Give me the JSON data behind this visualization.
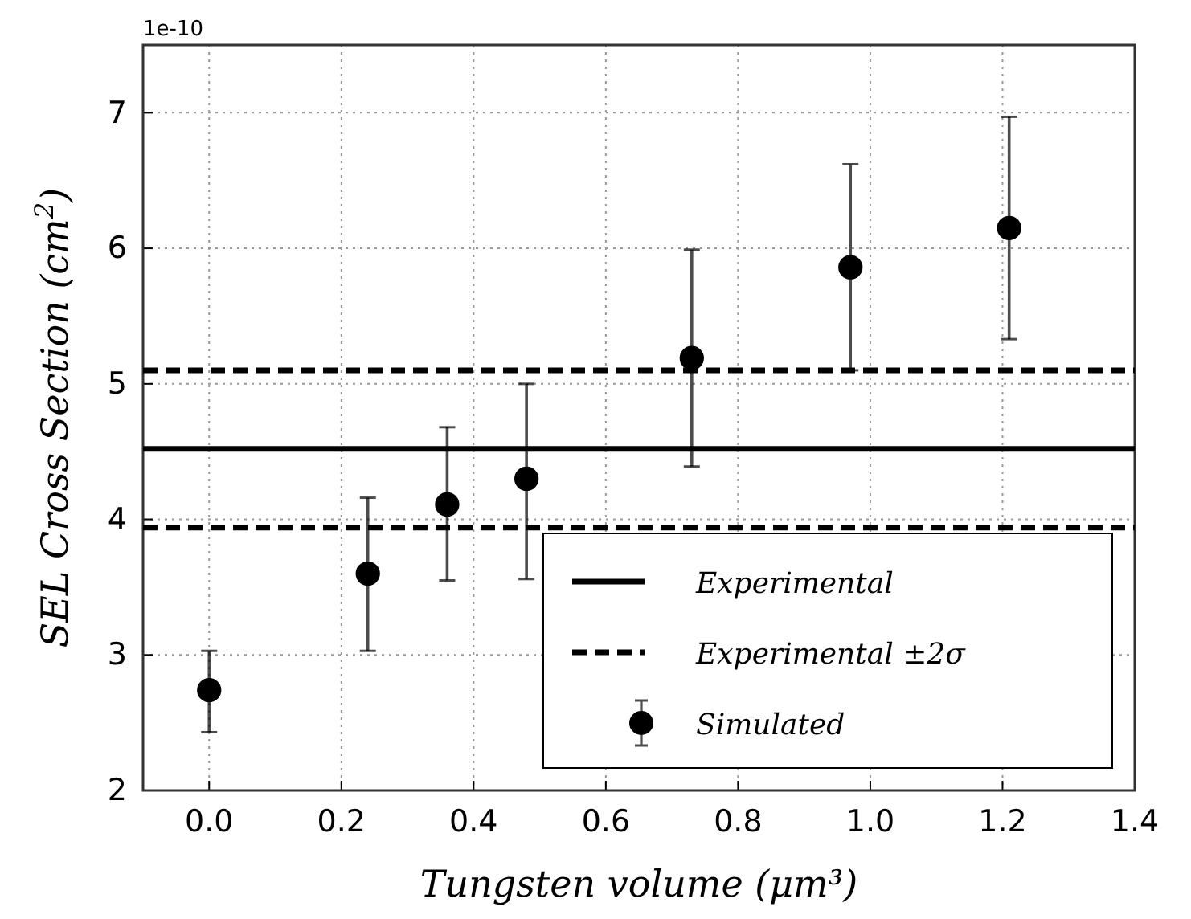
{
  "chart_data": {
    "type": "scatter",
    "xlabel": "Tungsten volume (μm³)",
    "ylabel": "SEL Cross Section (cm$^{2}$)",
    "annotations": [
      "1e-10"
    ],
    "xlim": [
      -0.1,
      1.4
    ],
    "xticks": [
      {
        "value": 0,
        "label": "0.0"
      },
      0.2,
      0.4,
      0.6,
      0.8,
      {
        "value": 1,
        "label": "1.0"
      },
      1.2,
      1.4
    ],
    "ylim": [
      2,
      7.5
    ],
    "yticks": [
      2,
      3,
      4,
      5,
      6,
      7
    ],
    "grid": true,
    "legend": "bottom right",
    "marker": "circle",
    "series": [
      {
        "name": "Simulated",
        "color": "#000000",
        "x": [
          0,
          0.24,
          0.36,
          0.48,
          0.73,
          0.97,
          1.21
        ],
        "values": [
          2.74,
          3.6,
          4.11,
          4.3,
          5.19,
          5.86,
          6.15
        ],
        "errors": [
          [
            2.43,
            3.03
          ],
          [
            3.03,
            4.16
          ],
          [
            3.55,
            4.68
          ],
          [
            3.56,
            5.0
          ],
          [
            4.39,
            5.99
          ],
          [
            5.1,
            6.62
          ],
          [
            5.33,
            6.97
          ]
        ]
      }
    ],
    "ref_lines": [
      {
        "axis": "y",
        "value": 4.52,
        "label": "Experimental",
        "color": "#000000",
        "line_style": "solid"
      },
      {
        "axis": "y",
        "value": 5.1,
        "label": "Experimental ±2σ",
        "color": "#000000",
        "line_style": "dashed"
      },
      {
        "axis": "y",
        "value": 3.94,
        "label": null,
        "color": "#000000",
        "line_style": "dashed"
      }
    ]
  }
}
